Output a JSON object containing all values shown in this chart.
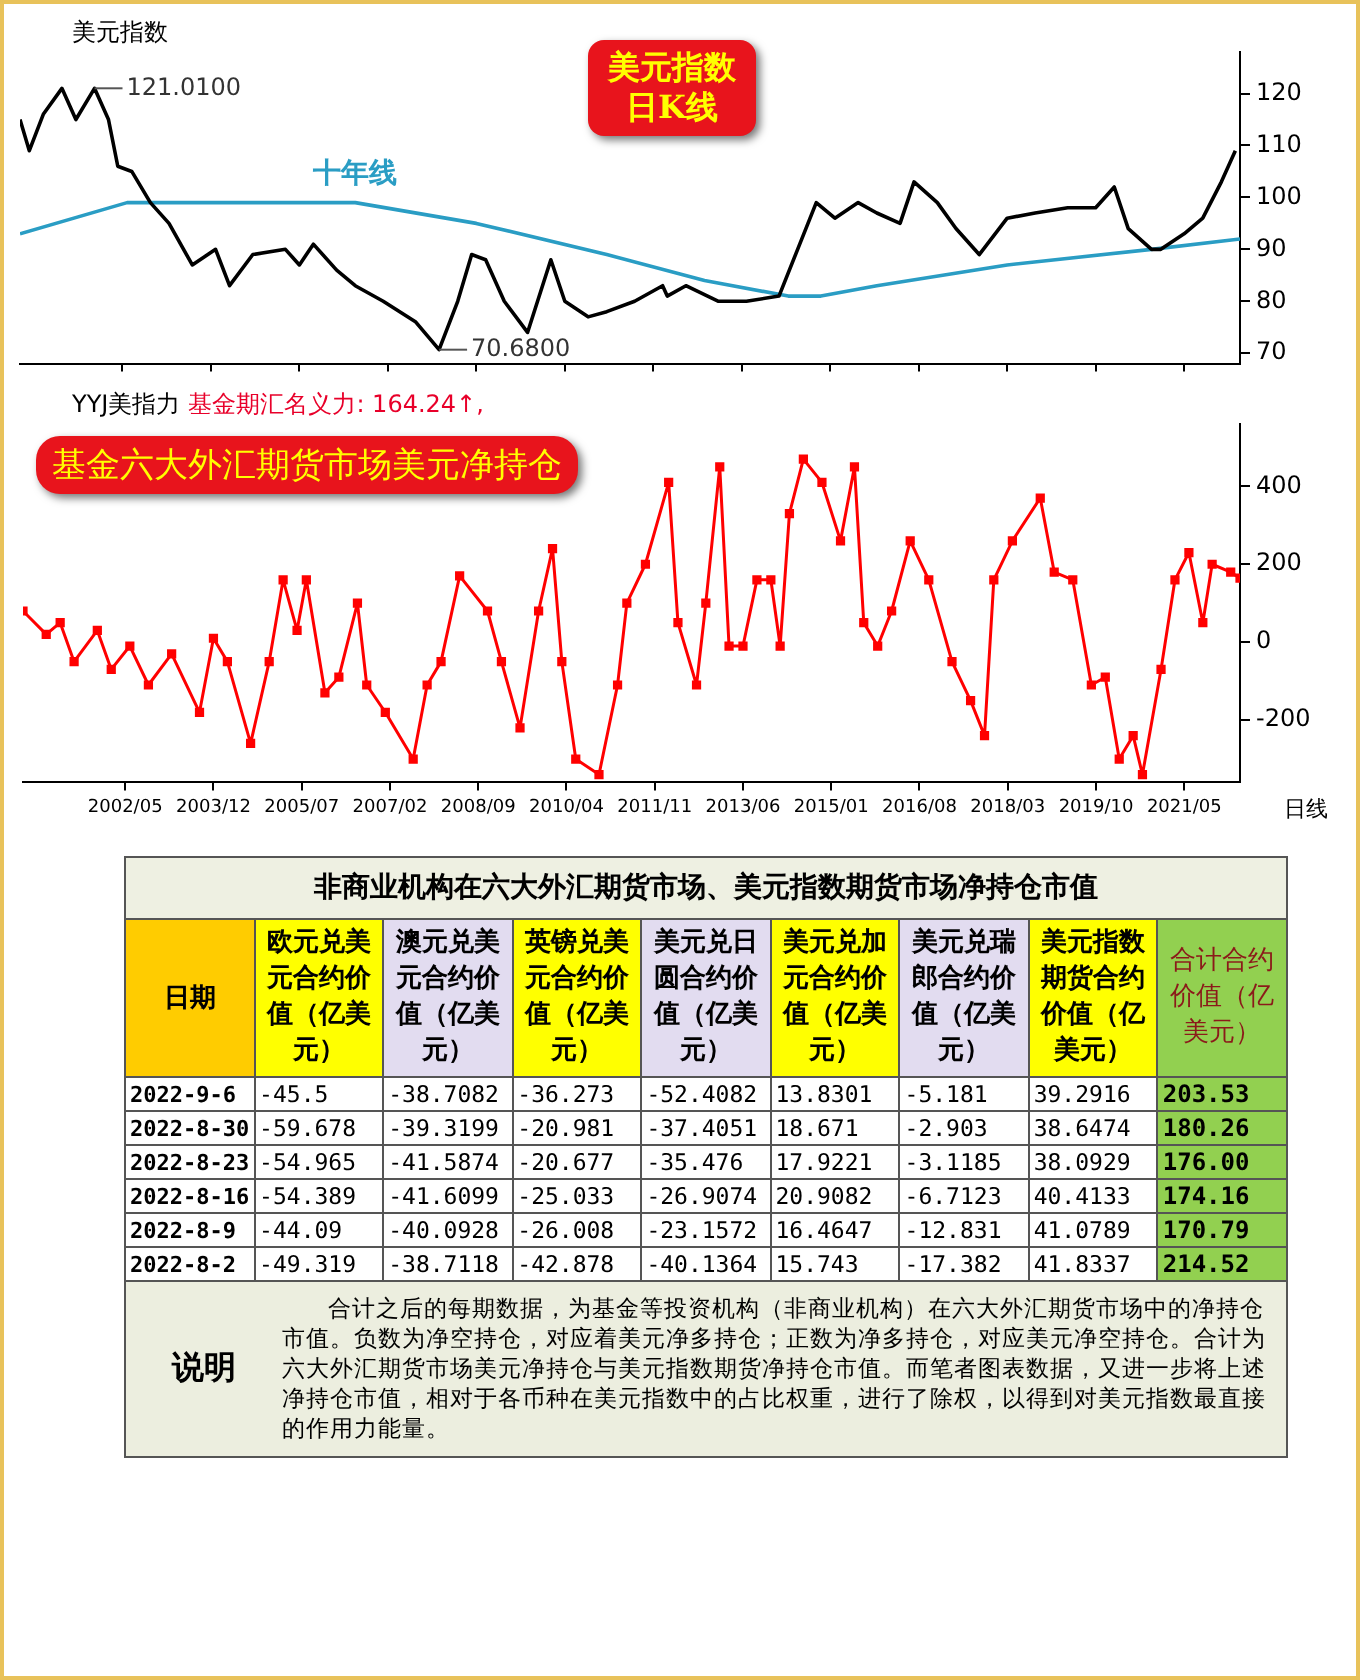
{
  "chart_data": [
    {
      "type": "line",
      "title": "美元指数",
      "annotations": [
        {
          "text": "121.0100",
          "x": "2001-11",
          "y": 121.01
        },
        {
          "text": "70.6800",
          "x": "2008-01",
          "y": 70.68
        },
        "美元指数日K线"
      ],
      "xlim": [
        "2000-07",
        "2022-05"
      ],
      "xticks": [
        {
          "value": "2002-05",
          "label": null
        },
        {
          "value": "2003-12",
          "label": null
        },
        {
          "value": "2005-07",
          "label": null
        },
        {
          "value": "2007-02",
          "label": null
        },
        {
          "value": "2008-09",
          "label": null
        },
        {
          "value": "2010-04",
          "label": null
        },
        {
          "value": "2011-11",
          "label": null
        },
        {
          "value": "2013-06",
          "label": null
        },
        {
          "value": "2015-01",
          "label": null
        },
        {
          "value": "2016-08",
          "label": null
        },
        {
          "value": "2018-03",
          "label": null
        },
        {
          "value": "2019-10",
          "label": null
        },
        {
          "value": "2021-05",
          "label": null
        }
      ],
      "ylim": [
        68,
        128
      ],
      "yticks": [
        70,
        80,
        90,
        100,
        110,
        120
      ],
      "tick_labels": "y",
      "grid": false,
      "legend": false,
      "marker": "none",
      "series": [
        {
          "color": "#000000",
          "x": [
            "2000-07",
            "2000-09",
            "2000-12",
            "2001-04",
            "2001-07",
            "2001-11",
            "2002-02",
            "2002-04",
            "2002-07",
            "2002-11",
            "2003-03",
            "2003-08",
            "2004-01",
            "2004-04",
            "2004-09",
            "2005-04",
            "2005-07",
            "2005-10",
            "2006-03",
            "2006-07",
            "2007-01",
            "2007-08",
            "2008-01",
            "2008-05",
            "2008-08",
            "2008-11",
            "2009-03",
            "2009-08",
            "2010-01",
            "2010-04",
            "2010-09",
            "2011-01",
            "2011-07",
            "2012-01",
            "2012-02",
            "2012-06",
            "2013-01",
            "2013-07",
            "2014-02",
            "2014-06",
            "2014-10",
            "2015-02",
            "2015-07",
            "2015-11",
            "2016-04",
            "2016-07",
            "2016-12",
            "2017-04",
            "2017-09",
            "2018-03",
            "2018-09",
            "2019-04",
            "2019-10",
            "2020-02",
            "2020-05",
            "2020-10",
            "2020-12",
            "2021-05",
            "2021-09",
            "2022-01",
            "2022-04"
          ],
          "values": [
            115,
            109,
            116,
            121,
            115,
            121.01,
            115,
            106,
            105,
            99,
            95,
            87,
            90,
            83,
            89,
            90,
            87,
            91,
            86,
            83,
            80,
            76,
            70.68,
            80,
            89,
            88,
            80,
            74,
            88,
            80,
            77,
            78,
            80,
            83,
            81,
            83,
            80,
            80,
            81,
            90,
            99,
            96,
            99,
            97,
            95,
            103,
            99,
            94,
            89,
            96,
            97,
            98,
            98,
            102,
            94,
            90,
            90,
            93,
            96,
            103,
            109
          ]
        },
        {
          "name": "十年线",
          "color": "#2a9dc4",
          "x": [
            "2000-07",
            "2002-06",
            "2003-08",
            "2006-07",
            "2008-09",
            "2011-01",
            "2012-10",
            "2014-04",
            "2014-11",
            "2015-11",
            "2018-03",
            "2020-10",
            "2022-05"
          ],
          "values": [
            93,
            99,
            99,
            99,
            95,
            89,
            84,
            81,
            81,
            83,
            87,
            90,
            92
          ]
        }
      ]
    },
    {
      "type": "line",
      "title": "YYJ美指力",
      "subtitle": "基金期汇名义力: 164.24↑,",
      "annotations": [
        "基金六大外汇期货市场美元净持仓",
        "日线"
      ],
      "xlim": [
        "2000-07",
        "2022-05"
      ],
      "xticks": [
        {
          "value": "2002-05",
          "label": "2002/05"
        },
        {
          "value": "2003-12",
          "label": "2003/12"
        },
        {
          "value": "2005-07",
          "label": "2005/07"
        },
        {
          "value": "2007-02",
          "label": "2007/02"
        },
        {
          "value": "2008-09",
          "label": "2008/09"
        },
        {
          "value": "2010-04",
          "label": "2010/04"
        },
        {
          "value": "2011-11",
          "label": "2011/11"
        },
        {
          "value": "2013-06",
          "label": "2013/06"
        },
        {
          "value": "2015-01",
          "label": "2015/01"
        },
        {
          "value": "2016-08",
          "label": "2016/08"
        },
        {
          "value": "2018-03",
          "label": "2018/03"
        },
        {
          "value": "2019-10",
          "label": "2019/10"
        },
        {
          "value": "2021-05",
          "label": "2021/05"
        }
      ],
      "ylim": [
        -360,
        560
      ],
      "yticks": [
        -200,
        0,
        200,
        400
      ],
      "grid": false,
      "legend": false,
      "marker": "square",
      "series": [
        {
          "color": "#ff0000",
          "x": [
            "2000-07",
            "2000-12",
            "2001-03",
            "2001-06",
            "2001-11",
            "2002-02",
            "2002-06",
            "2002-10",
            "2003-03",
            "2003-09",
            "2003-12",
            "2004-03",
            "2004-08",
            "2004-12",
            "2005-03",
            "2005-06",
            "2005-08",
            "2005-12",
            "2006-03",
            "2006-07",
            "2006-09",
            "2007-01",
            "2007-07",
            "2007-10",
            "2008-01",
            "2008-05",
            "2008-11",
            "2009-02",
            "2009-06",
            "2009-10",
            "2010-01",
            "2010-03",
            "2010-06",
            "2010-11",
            "2011-03",
            "2011-05",
            "2011-09",
            "2012-02",
            "2012-04",
            "2012-08",
            "2012-10",
            "2013-01",
            "2013-03",
            "2013-06",
            "2013-09",
            "2013-12",
            "2014-02",
            "2014-04",
            "2014-07",
            "2014-11",
            "2015-03",
            "2015-06",
            "2015-08",
            "2015-11",
            "2016-02",
            "2016-06",
            "2016-10",
            "2017-03",
            "2017-07",
            "2017-10",
            "2017-12",
            "2018-04",
            "2018-10",
            "2019-01",
            "2019-05",
            "2019-09",
            "2019-12",
            "2020-03",
            "2020-06",
            "2020-08",
            "2020-12",
            "2021-03",
            "2021-06",
            "2021-09",
            "2021-11",
            "2022-03",
            "2022-05"
          ],
          "values": [
            80,
            20,
            50,
            -50,
            30,
            -70,
            -10,
            -110,
            -30,
            -180,
            10,
            -50,
            -260,
            -50,
            160,
            30,
            160,
            -130,
            -90,
            100,
            -110,
            -180,
            -300,
            -110,
            -50,
            170,
            80,
            -50,
            -220,
            80,
            240,
            -50,
            -300,
            -340,
            -110,
            100,
            200,
            410,
            50,
            -110,
            100,
            450,
            -10,
            -10,
            160,
            160,
            -10,
            330,
            470,
            410,
            260,
            450,
            50,
            -10,
            80,
            260,
            160,
            -50,
            -150,
            -240,
            160,
            260,
            370,
            180,
            160,
            -110,
            -90,
            -300,
            -240,
            -340,
            -70,
            160,
            230,
            50,
            200,
            180,
            164.24
          ]
        }
      ]
    },
    {
      "type": "heatmap",
      "data_labels": true,
      "title": "非商业机构在六大外汇期货市场、美元指数期货市场净持仓市值",
      "ylabel": "日期",
      "categories": [
        "欧元兑美元合约价值（亿美元）",
        "澳元兑美元合约价值（亿美元）",
        "英镑兑美元合约价值（亿美元）",
        "美元兑日圆合约价值（亿美元）",
        "美元兑加元合约价值（亿美元）",
        "美元兑瑞郎合约价值（亿美元）",
        "美元指数期货合约价值（亿美元）",
        "合计合约价值（亿美元）"
      ],
      "y_categories": [
        "2022-9-6",
        "2022-8-30",
        "2022-8-23",
        "2022-8-16",
        "2022-8-9",
        "2022-8-2"
      ],
      "cells": [
        [
          -45.5,
          -38.7082,
          -36.273,
          -52.4082,
          13.8301,
          -5.181,
          39.2916,
          203.53
        ],
        [
          -59.678,
          -39.3199,
          -20.981,
          -37.4051,
          18.671,
          -2.903,
          38.6474,
          180.26
        ],
        [
          -54.965,
          -41.5874,
          -20.677,
          -35.476,
          17.9221,
          -3.1185,
          38.0929,
          176
        ],
        [
          -54.389,
          -41.6099,
          -25.033,
          -26.9074,
          20.9082,
          -6.7123,
          40.4133,
          174.16
        ],
        [
          -44.09,
          -40.0928,
          -26.008,
          -23.1572,
          16.4647,
          -12.831,
          41.0789,
          170.79
        ],
        [
          -49.319,
          -38.7118,
          -42.878,
          -40.1364,
          15.743,
          -17.382,
          41.8337,
          214.52
        ]
      ],
      "cell_labels": [
        [
          "-45.5",
          "-38.7082",
          "-36.273",
          "-52.4082",
          "13.8301",
          "-5.181",
          "39.2916",
          "203.53"
        ],
        [
          "-59.678",
          "-39.3199",
          "-20.981",
          "-37.4051",
          "18.671",
          "-2.903",
          "38.6474",
          "180.26"
        ],
        [
          "-54.965",
          "-41.5874",
          "-20.677",
          "-35.476",
          "17.9221",
          "-3.1185",
          "38.0929",
          "176.00"
        ],
        [
          "-54.389",
          "-41.6099",
          "-25.033",
          "-26.9074",
          "20.9082",
          "-6.7123",
          "40.4133",
          "174.16"
        ],
        [
          "-44.09",
          "-40.0928",
          "-26.008",
          "-23.1572",
          "16.4647",
          "-12.831",
          "41.0789",
          "170.79"
        ],
        [
          "-49.319",
          "-38.7118",
          "-42.878",
          "-40.1364",
          "15.743",
          "-17.382",
          "41.8337",
          "214.52"
        ]
      ],
      "annotations": [
        "说明",
        "合计之后的每期数据，为基金等投资机构（非商业机构）在六大外汇期货市场中的净持仓市值。负数为净空持仓，对应着美元净多持仓；正数为净多持仓，对应美元净空持仓。合计为六大外汇期货市场美元净持仓与美元指数期货净持仓市值。而笔者图表数据，又进一步将上述净持仓市值，相对于各币种在美元指数中的占比权重，进行了除权，以得到对美元指数最直接的作用力能量。"
      ]
    }
  ]
}
